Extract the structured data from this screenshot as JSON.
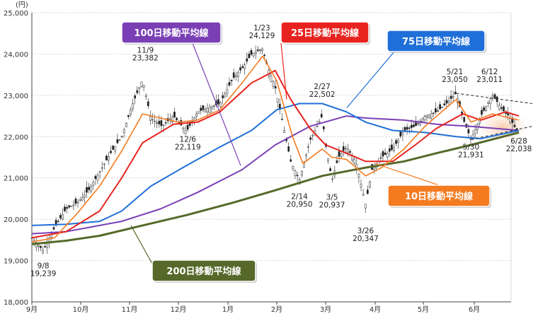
{
  "chart_data": {
    "type": "line",
    "y_unit": "(円)",
    "ylim": [
      18000,
      25000
    ],
    "y_ticks": [
      "25,000",
      "24,000",
      "23,000",
      "22,000",
      "21,000",
      "20,000",
      "19,000",
      "18,000"
    ],
    "x_ticks": [
      "9月",
      "10月",
      "11月",
      "12月",
      "1月",
      "2月",
      "3月",
      "4月",
      "5月",
      "6月"
    ],
    "grid": "horizontal",
    "candles": {
      "name": "",
      "points": [
        {
          "date": "9/8",
          "close": 19239
        },
        {
          "date": "10/1",
          "close": 20400
        },
        {
          "date": "11/9",
          "close": 23382
        },
        {
          "date": "12/6",
          "close": 22119
        },
        {
          "date": "1/23",
          "close": 24129
        },
        {
          "date": "2/14",
          "close": 20950
        },
        {
          "date": "2/27",
          "close": 22502
        },
        {
          "date": "3/5",
          "close": 20937
        },
        {
          "date": "3/26",
          "close": 20347
        },
        {
          "date": "5/21",
          "close": 23050
        },
        {
          "date": "5/30",
          "close": 21931
        },
        {
          "date": "6/12",
          "close": 23011
        },
        {
          "date": "6/28",
          "close": 22038
        }
      ]
    },
    "series": [
      {
        "name": "10日移動平均線",
        "color": "#f47b20"
      },
      {
        "name": "25日移動平均線",
        "color": "#e8231f"
      },
      {
        "name": "75日移動平均線",
        "color": "#1f6fd8"
      },
      {
        "name": "100日移動平均線",
        "color": "#7a3fb5"
      },
      {
        "name": "200日移動平均線",
        "color": "#56692a"
      }
    ],
    "annotations": [
      {
        "date": "9/8",
        "value": "19,239"
      },
      {
        "date": "11/9",
        "value": "23,382"
      },
      {
        "date": "12/6",
        "value": "22,119"
      },
      {
        "date": "1/23",
        "value": "24,129"
      },
      {
        "date": "2/14",
        "value": "20,950"
      },
      {
        "date": "2/27",
        "value": "22,502"
      },
      {
        "date": "3/5",
        "value": "20,937"
      },
      {
        "date": "3/26",
        "value": "20,347"
      },
      {
        "date": "5/21",
        "value": "23,050"
      },
      {
        "date": "5/30",
        "value": "21,931"
      },
      {
        "date": "6/12",
        "value": "23,011"
      },
      {
        "date": "6/28",
        "value": "22,038"
      }
    ]
  }
}
